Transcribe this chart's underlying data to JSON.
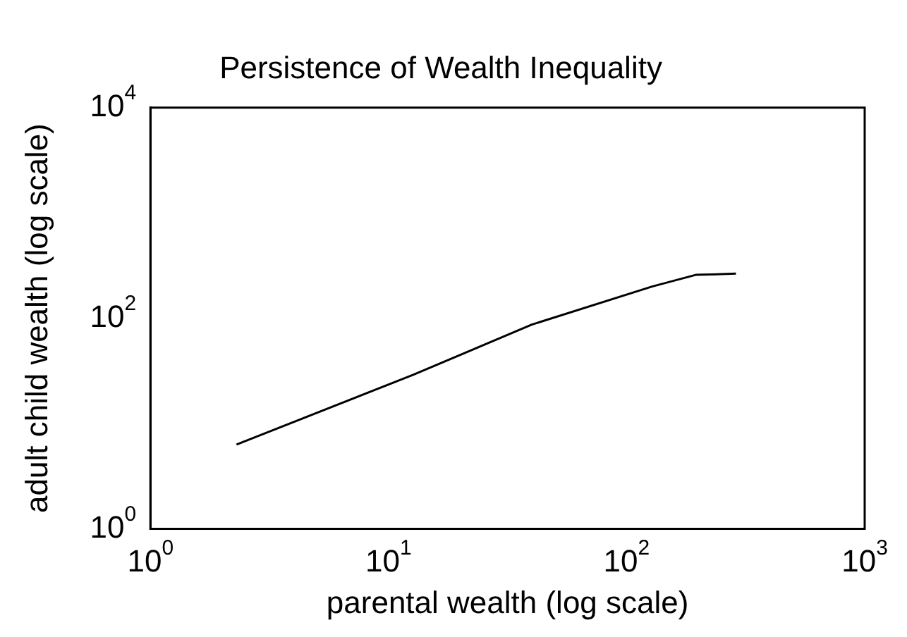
{
  "chart_data": {
    "type": "line",
    "title": "Persistence of Wealth Inequality",
    "xlabel": "parental wealth (log scale)",
    "ylabel": "adult child wealth (log scale)",
    "log": "xy",
    "x": [
      2.3,
      12.7,
      40,
      128,
      195,
      288
    ],
    "series": [
      {
        "color": "#000000",
        "values": [
          6.3,
          29,
          87,
          200,
          258,
          265
        ]
      }
    ],
    "xlim": [
      1,
      1000
    ],
    "xticks": [
      {
        "value": 1,
        "label": "10$^{0}$"
      },
      {
        "value": 10,
        "label": "10$^{1}$"
      },
      {
        "value": 100,
        "label": "10$^{2}$"
      },
      {
        "value": 1000,
        "label": "10$^{3}$"
      }
    ],
    "ylim": [
      1,
      10000
    ],
    "yticks": [
      {
        "value": 1,
        "label": "10$^{0}$"
      },
      {
        "value": 100,
        "label": "10$^{2}$"
      },
      {
        "value": 10000,
        "label": "10$^{4}$"
      }
    ],
    "grid": false,
    "legend": false
  }
}
